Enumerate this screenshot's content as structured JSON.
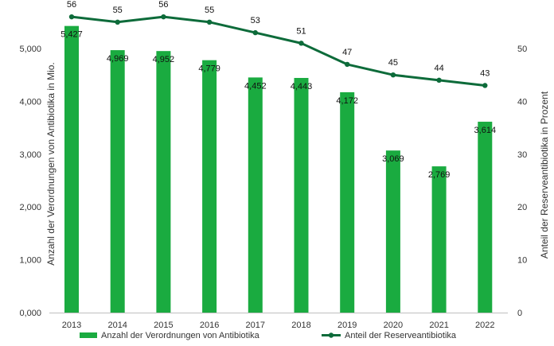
{
  "chart_data": {
    "type": "bar",
    "categories": [
      "2013",
      "2014",
      "2015",
      "2016",
      "2017",
      "2018",
      "2019",
      "2020",
      "2021",
      "2022"
    ],
    "series": [
      {
        "name": "Anzahl der Verordnungen von Antibiotika",
        "type": "bar",
        "axis": "left",
        "values": [
          5427,
          4969,
          4952,
          4779,
          4452,
          4443,
          4172,
          3069,
          2769,
          3614
        ],
        "labels": [
          "5,427",
          "4,969",
          "4,952",
          "4,779",
          "4,452",
          "4,443",
          "4,172",
          "3,069",
          "2,769",
          "3,614"
        ],
        "color": "#1aab40"
      },
      {
        "name": "Anteil der Reserveantibiotika",
        "type": "line",
        "axis": "right",
        "values": [
          56,
          55,
          56,
          55,
          53,
          51,
          47,
          45,
          44,
          43
        ],
        "labels": [
          "56",
          "55",
          "56",
          "55",
          "53",
          "51",
          "47",
          "45",
          "44",
          "43"
        ],
        "color": "#0d6b3a"
      }
    ],
    "ylabel": "Anzahl der Verordnungen von Antibiotika in Mio.",
    "y2label": "Anteil der Reserveantibiotika in Prozent",
    "ylim": [
      0,
      5000
    ],
    "y2lim": [
      0,
      50
    ],
    "yticks": [
      "0,000",
      "1,000",
      "2,000",
      "3,000",
      "4,000",
      "5,000"
    ],
    "yticks_values": [
      0,
      1000,
      2000,
      3000,
      4000,
      5000
    ],
    "y2ticks": [
      "0",
      "10",
      "20",
      "30",
      "40",
      "50"
    ],
    "y2ticks_values": [
      0,
      10,
      20,
      30,
      40,
      50
    ],
    "grid": false,
    "legend_position": "bottom"
  }
}
